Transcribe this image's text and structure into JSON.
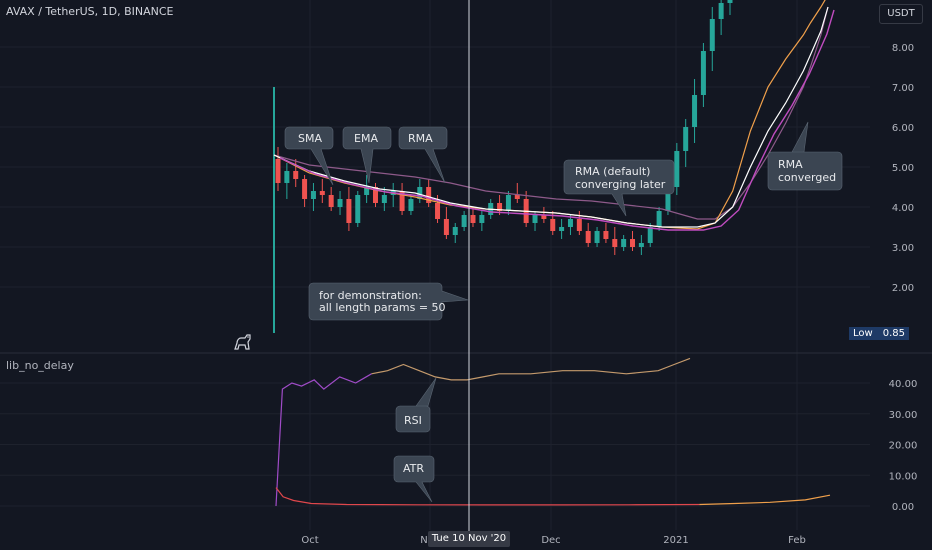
{
  "header": {
    "symbol": "AVAX / TetherUS, 1D, BINANCE",
    "currency": "USDT"
  },
  "indicator": {
    "title": "lib_no_delay"
  },
  "low_badge": {
    "label": "Low",
    "value": "0.85"
  },
  "crosshair": {
    "date_label": "Tue 10 Nov '20"
  },
  "icons": {
    "logo": "dino-logo-icon"
  },
  "colors": {
    "background": "#131722",
    "grid": "#1e222d",
    "up": "#26a69a",
    "down": "#ef5350",
    "sma": "#8e5a8a",
    "ema": "#f0a04b",
    "rma": "#ffffff",
    "rma_alt": "#c04cc0",
    "rsi": "#a04cc8",
    "rsi_late": "#c49a6c",
    "atr": "#e0474c",
    "atr_late": "#f0a04b",
    "callout": "#3b4552"
  },
  "chart_data": [
    {
      "type": "line",
      "title": "",
      "ylim": [
        0.7,
        9.3
      ],
      "y_ticks": [
        "2.00",
        "3.00",
        "4.00",
        "5.00",
        "6.00",
        "7.00",
        "8.00"
      ],
      "x_ticks": [
        "Oct",
        "Nov",
        "Dec",
        "2021",
        "Feb"
      ],
      "series": [
        {
          "name": "SMA",
          "key": "sma",
          "x": [
            0,
            10,
            20,
            30,
            40,
            50,
            60,
            70,
            80,
            90,
            100,
            110,
            120,
            125,
            130,
            135,
            140,
            145,
            150,
            152,
            155,
            157
          ],
          "values": [
            5.3,
            5.05,
            4.95,
            4.85,
            4.75,
            4.6,
            4.4,
            4.3,
            4.2,
            4.15,
            4.05,
            3.95,
            3.7,
            3.7,
            4.0,
            4.6,
            5.3,
            6.1,
            7.0,
            7.5,
            8.3,
            9.0
          ]
        },
        {
          "name": "EMA",
          "key": "ema",
          "x": [
            0,
            10,
            20,
            30,
            40,
            50,
            60,
            70,
            80,
            90,
            100,
            110,
            120,
            125,
            130,
            135,
            140,
            145,
            150,
            152,
            155,
            157
          ],
          "values": [
            5.3,
            4.85,
            4.6,
            4.4,
            4.25,
            4.05,
            3.95,
            3.9,
            3.85,
            3.75,
            3.6,
            3.5,
            3.45,
            3.6,
            4.4,
            5.9,
            7.0,
            7.7,
            8.3,
            8.6,
            9.0,
            9.3
          ]
        },
        {
          "name": "RMA",
          "key": "rma",
          "x": [
            0,
            10,
            20,
            30,
            40,
            50,
            60,
            70,
            80,
            90,
            100,
            110,
            120,
            125,
            130,
            135,
            140,
            145,
            150,
            152,
            155,
            157
          ],
          "values": [
            5.3,
            4.9,
            4.65,
            4.45,
            4.35,
            4.1,
            3.95,
            3.9,
            3.85,
            3.75,
            3.6,
            3.5,
            3.5,
            3.6,
            4.0,
            5.0,
            5.9,
            6.6,
            7.4,
            7.8,
            8.4,
            9.0
          ]
        }
      ],
      "ohlc": [
        [
          5.2,
          5.5,
          4.4,
          4.6
        ],
        [
          4.6,
          5.1,
          4.2,
          4.9
        ],
        [
          4.9,
          5.2,
          4.5,
          4.7
        ],
        [
          4.7,
          4.8,
          4.0,
          4.2
        ],
        [
          4.2,
          4.6,
          3.9,
          4.4
        ],
        [
          4.4,
          4.7,
          4.1,
          4.3
        ],
        [
          4.3,
          4.5,
          3.9,
          4.0
        ],
        [
          4.0,
          4.4,
          3.8,
          4.2
        ],
        [
          4.2,
          4.5,
          3.4,
          3.6
        ],
        [
          3.6,
          4.4,
          3.5,
          4.3
        ],
        [
          4.3,
          4.8,
          4.1,
          4.5
        ],
        [
          4.5,
          4.6,
          4.0,
          4.1
        ],
        [
          4.1,
          4.5,
          3.9,
          4.3
        ],
        [
          4.3,
          4.6,
          4.0,
          4.4
        ],
        [
          4.4,
          4.6,
          3.8,
          3.9
        ],
        [
          3.9,
          4.3,
          3.8,
          4.2
        ],
        [
          4.2,
          4.7,
          4.1,
          4.5
        ],
        [
          4.5,
          4.7,
          4.0,
          4.1
        ],
        [
          4.1,
          4.3,
          3.6,
          3.7
        ],
        [
          3.7,
          4.0,
          3.2,
          3.3
        ],
        [
          3.3,
          3.6,
          3.1,
          3.5
        ],
        [
          3.5,
          3.9,
          3.4,
          3.8
        ],
        [
          3.8,
          4.0,
          3.5,
          3.6
        ],
        [
          3.6,
          3.9,
          3.4,
          3.8
        ],
        [
          3.8,
          4.2,
          3.7,
          4.1
        ],
        [
          4.1,
          4.3,
          3.8,
          3.9
        ],
        [
          3.9,
          4.4,
          3.8,
          4.3
        ],
        [
          4.3,
          4.6,
          4.1,
          4.2
        ],
        [
          4.2,
          4.4,
          3.5,
          3.6
        ],
        [
          3.6,
          3.9,
          3.4,
          3.8
        ],
        [
          3.8,
          4.0,
          3.6,
          3.7
        ],
        [
          3.7,
          3.9,
          3.3,
          3.4
        ],
        [
          3.4,
          3.7,
          3.2,
          3.5
        ],
        [
          3.5,
          3.8,
          3.3,
          3.7
        ],
        [
          3.7,
          3.9,
          3.3,
          3.4
        ],
        [
          3.4,
          3.6,
          3.0,
          3.1
        ],
        [
          3.1,
          3.5,
          3.0,
          3.4
        ],
        [
          3.4,
          3.6,
          3.1,
          3.2
        ],
        [
          3.2,
          3.5,
          2.8,
          3.0
        ],
        [
          3.0,
          3.3,
          2.9,
          3.2
        ],
        [
          3.2,
          3.4,
          2.9,
          3.0
        ],
        [
          3.0,
          3.3,
          2.8,
          3.1
        ],
        [
          3.1,
          3.6,
          3.0,
          3.5
        ],
        [
          3.5,
          4.0,
          3.4,
          3.9
        ],
        [
          3.9,
          4.6,
          3.8,
          4.5
        ],
        [
          4.5,
          5.6,
          4.3,
          5.4
        ],
        [
          5.4,
          6.2,
          5.0,
          6.0
        ],
        [
          6.0,
          7.2,
          5.6,
          6.8
        ],
        [
          6.8,
          8.1,
          6.5,
          7.9
        ],
        [
          7.9,
          9.0,
          7.4,
          8.7
        ],
        [
          8.7,
          9.3,
          8.3,
          9.1
        ],
        [
          9.1,
          9.3,
          8.8,
          9.2
        ]
      ],
      "price_spike": {
        "high": 7.0,
        "low": 0.85
      }
    },
    {
      "type": "line",
      "title": "",
      "ylim": [
        -2,
        48
      ],
      "y_ticks": [
        "0.00",
        "10.00",
        "20.00",
        "30.00",
        "40.00"
      ],
      "series": [
        {
          "name": "RSI",
          "key": "rsi",
          "x": [
            0,
            2,
            5,
            8,
            12,
            15,
            20,
            25,
            30,
            35,
            40,
            45,
            50,
            55,
            60,
            65,
            70,
            80,
            90,
            100,
            110,
            120,
            125,
            130
          ],
          "values": [
            0,
            38,
            40,
            39,
            41,
            38,
            42,
            40,
            43,
            44,
            46,
            44,
            42,
            41,
            41,
            42,
            43,
            43,
            44,
            44,
            43,
            44,
            46,
            48
          ]
        },
        {
          "name": "ATR",
          "key": "atr",
          "x": [
            0,
            2,
            5,
            10,
            20,
            40,
            60,
            80,
            100,
            120,
            130,
            140,
            150,
            157
          ],
          "values": [
            6,
            3,
            1.8,
            0.8,
            0.5,
            0.4,
            0.35,
            0.35,
            0.4,
            0.5,
            0.8,
            1.2,
            2.0,
            3.5
          ]
        }
      ]
    }
  ],
  "annotations": {
    "sma": "SMA",
    "ema": "EMA",
    "rma": "RMA",
    "rma_default_l1": "RMA (default)",
    "rma_default_l2": "converging later",
    "rma_converged_l1": "RMA",
    "rma_converged_l2": "converged",
    "demo_l1": "for demonstration:",
    "demo_l2": "all length params = 50",
    "rsi": "RSI",
    "atr": "ATR"
  }
}
